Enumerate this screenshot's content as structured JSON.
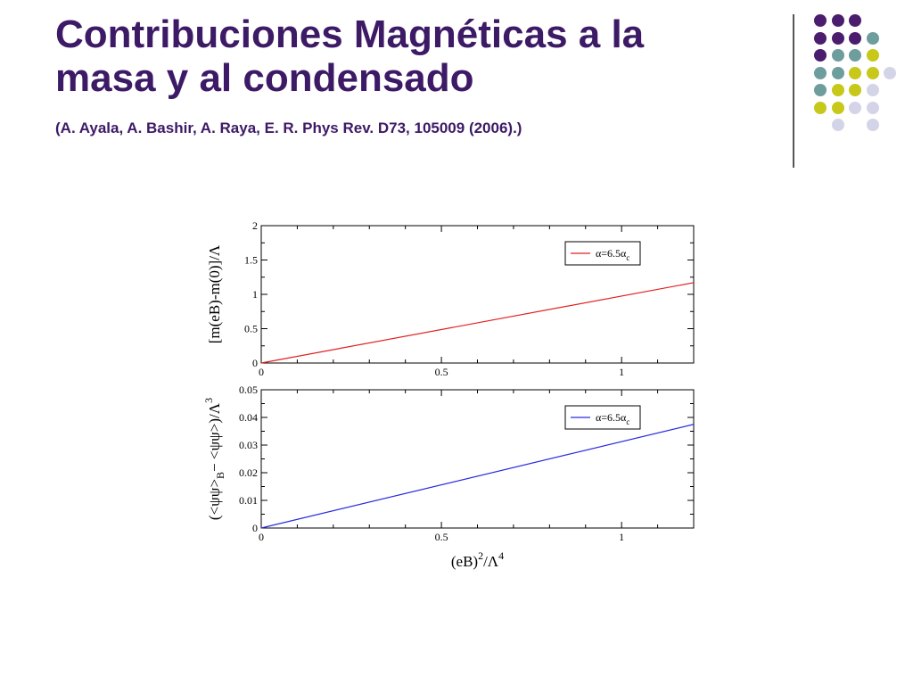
{
  "slide": {
    "title_line1": "Contribuciones Magnéticas a la",
    "title_line2": "masa y al condensado",
    "citation": "(A. Ayala, A. Bashir, A. Raya, E. R. Phys Rev. D73, 105009 (2006).)"
  },
  "colors": {
    "title": "#3d1a66",
    "purple": "#4b1d6f",
    "teal": "#6e9d9d",
    "yellowgreen": "#c7c81a",
    "lavender": "#d4d4e8",
    "series_top": "#e02020",
    "series_bottom": "#2a2ae0"
  },
  "decor": {
    "dot_rows": [
      [
        "purple",
        "purple",
        "purple"
      ],
      [
        "purple",
        "purple",
        "purple",
        "teal"
      ],
      [
        "purple",
        "teal",
        "teal",
        "yellowgreen"
      ],
      [
        "teal",
        "teal",
        "yellowgreen",
        "yellowgreen",
        "lavender"
      ],
      [
        "teal",
        "yellowgreen",
        "yellowgreen",
        "lavender"
      ],
      [
        "yellowgreen",
        "yellowgreen",
        "lavender",
        "lavender"
      ],
      [
        "lavender",
        "lavender"
      ]
    ]
  },
  "chart_data": [
    {
      "type": "line",
      "ylabel": "[m(eB)-m(0)]/Λ",
      "xlim": [
        0,
        1.2
      ],
      "ylim": [
        0,
        2
      ],
      "xticks": [
        0,
        0.5,
        1
      ],
      "yticks": [
        0,
        0.5,
        1,
        1.5,
        2
      ],
      "xtick_labels": [
        "0",
        "0.5",
        "1"
      ],
      "ytick_labels": [
        "0",
        "0.5",
        "1",
        "1.5",
        "2"
      ],
      "grid": false,
      "legend_position": "top-right",
      "series": [
        {
          "name": "α=6.5α",
          "name_subscript": "c",
          "color": "#e02020",
          "x": [
            0,
            1.2
          ],
          "y": [
            0,
            1.17
          ]
        }
      ]
    },
    {
      "type": "line",
      "ylabel": "(<ψψ>B − <ψψ>)/Λ3",
      "ylabel_parts": {
        "open": "(<ψψ>",
        "sub": "B",
        "mid": "− <ψψ>)/Λ",
        "sup": "3"
      },
      "xlabel": "(eB)2/Λ4",
      "xlabel_parts": {
        "base": "(eB)",
        "sup1": "2",
        "mid": "/Λ",
        "sup2": "4"
      },
      "xlim": [
        0,
        1.2
      ],
      "ylim": [
        0,
        0.05
      ],
      "xticks": [
        0,
        0.5,
        1
      ],
      "yticks": [
        0,
        0.01,
        0.02,
        0.03,
        0.04,
        0.05
      ],
      "xtick_labels": [
        "0",
        "0.5",
        "1"
      ],
      "ytick_labels": [
        "0",
        "0.01",
        "0.02",
        "0.03",
        "0.04",
        "0.05"
      ],
      "grid": false,
      "legend_position": "top-right",
      "series": [
        {
          "name": "α=6.5α",
          "name_subscript": "c",
          "color": "#2a2ae0",
          "x": [
            0,
            1.2
          ],
          "y": [
            0,
            0.0375
          ]
        }
      ]
    }
  ]
}
